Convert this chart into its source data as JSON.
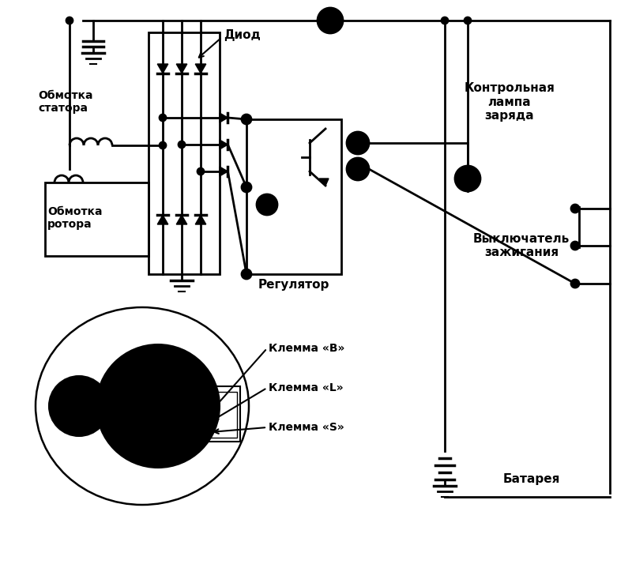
{
  "bg_color": "#ffffff",
  "lc": "#000000",
  "lw": 2.0,
  "labels": {
    "diod": "Диод",
    "stator": "Обмотка\nстатора",
    "rotor": "Обмотка\nротора",
    "regulator": "Регулятор",
    "lamp": "Контрольная\nлампа\nзаряда",
    "switch": "Выключатель\nзажигания",
    "battery": "Батарея",
    "klemma_B": "Клемма «B»",
    "klemma_L": "Клемма «L»",
    "klemma_S": "Клемма «S»"
  }
}
